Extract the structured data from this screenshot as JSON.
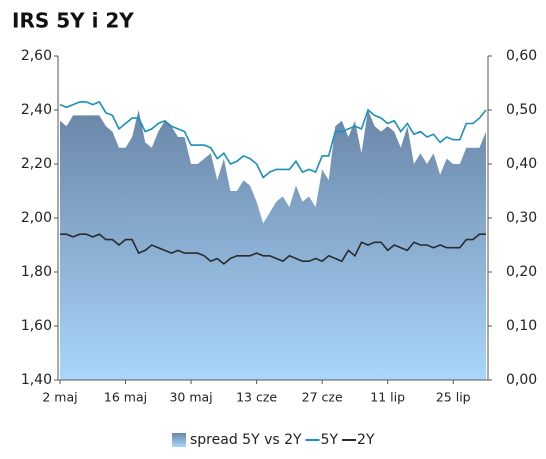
{
  "chart_data": {
    "type": "line",
    "title": "IRS 5Y i 2Y",
    "categories": [
      "2 maj",
      null,
      null,
      null,
      null,
      null,
      null,
      null,
      null,
      null,
      "16 maj",
      null,
      null,
      null,
      null,
      null,
      null,
      null,
      null,
      null,
      "30 maj",
      null,
      null,
      null,
      null,
      null,
      null,
      null,
      null,
      null,
      "13 cze",
      null,
      null,
      null,
      null,
      null,
      null,
      null,
      null,
      null,
      "27 cze",
      null,
      null,
      null,
      null,
      null,
      null,
      null,
      null,
      null,
      "11 lip",
      null,
      null,
      null,
      null,
      null,
      null,
      null,
      null,
      null,
      "25 lip",
      null,
      null,
      null,
      null,
      null
    ],
    "series": [
      {
        "name": "spread 5Y vs 2Y",
        "color": "#7c9cc0",
        "axis": "y2",
        "kind": "area",
        "values": [
          0.48,
          0.47,
          0.49,
          0.49,
          0.49,
          0.49,
          0.49,
          0.47,
          0.46,
          0.43,
          0.43,
          0.45,
          0.5,
          0.44,
          0.43,
          0.46,
          0.48,
          0.47,
          0.45,
          0.45,
          0.4,
          0.4,
          0.41,
          0.42,
          0.37,
          0.41,
          0.35,
          0.35,
          0.37,
          0.36,
          0.33,
          0.29,
          0.31,
          0.33,
          0.34,
          0.32,
          0.36,
          0.33,
          0.34,
          0.32,
          0.39,
          0.37,
          0.47,
          0.48,
          0.45,
          0.48,
          0.42,
          0.5,
          0.47,
          0.46,
          0.47,
          0.46,
          0.43,
          0.47,
          0.4,
          0.42,
          0.4,
          0.42,
          0.38,
          0.41,
          0.4,
          0.4,
          0.43,
          0.43,
          0.43,
          0.46
        ]
      },
      {
        "name": "5Y",
        "color": "#1a8fc0",
        "kind": "line",
        "values": [
          2.42,
          2.41,
          2.42,
          2.43,
          2.43,
          2.42,
          2.43,
          2.39,
          2.38,
          2.33,
          2.35,
          2.37,
          2.37,
          2.32,
          2.33,
          2.35,
          2.36,
          2.34,
          2.33,
          2.32,
          2.27,
          2.27,
          2.27,
          2.26,
          2.22,
          2.24,
          2.2,
          2.21,
          2.23,
          2.22,
          2.2,
          2.15,
          2.17,
          2.18,
          2.18,
          2.18,
          2.21,
          2.17,
          2.18,
          2.17,
          2.23,
          2.23,
          2.32,
          2.32,
          2.33,
          2.34,
          2.33,
          2.4,
          2.38,
          2.37,
          2.35,
          2.36,
          2.32,
          2.35,
          2.31,
          2.32,
          2.3,
          2.31,
          2.28,
          2.3,
          2.29,
          2.29,
          2.35,
          2.35,
          2.37,
          2.4
        ]
      },
      {
        "name": "2Y",
        "color": "#2b2b2b",
        "kind": "line",
        "values": [
          1.94,
          1.94,
          1.93,
          1.94,
          1.94,
          1.93,
          1.94,
          1.92,
          1.92,
          1.9,
          1.92,
          1.92,
          1.87,
          1.88,
          1.9,
          1.89,
          1.88,
          1.87,
          1.88,
          1.87,
          1.87,
          1.87,
          1.86,
          1.84,
          1.85,
          1.83,
          1.85,
          1.86,
          1.86,
          1.86,
          1.87,
          1.86,
          1.86,
          1.85,
          1.84,
          1.86,
          1.85,
          1.84,
          1.84,
          1.85,
          1.84,
          1.86,
          1.85,
          1.84,
          1.88,
          1.86,
          1.91,
          1.9,
          1.91,
          1.91,
          1.88,
          1.9,
          1.89,
          1.88,
          1.91,
          1.9,
          1.9,
          1.89,
          1.9,
          1.89,
          1.89,
          1.89,
          1.92,
          1.92,
          1.94,
          1.94
        ]
      }
    ],
    "ylim": [
      1.4,
      2.6
    ],
    "yticks": [
      {
        "value": 1.4,
        "label": "1,40"
      },
      {
        "value": 1.6,
        "label": "1,60"
      },
      {
        "value": 1.8,
        "label": "1,80"
      },
      {
        "value": 2.0,
        "label": "2,00"
      },
      {
        "value": 2.2,
        "label": "2,20"
      },
      {
        "value": 2.4,
        "label": "2,40"
      },
      {
        "value": 2.6,
        "label": "2,60"
      }
    ],
    "y2lim": [
      0,
      0.6
    ],
    "y2ticks": [
      {
        "value": 0,
        "label": "0,00"
      },
      {
        "value": 0.1,
        "label": "0,10"
      },
      {
        "value": 0.2,
        "label": "0,20"
      },
      {
        "value": 0.3,
        "label": "0,30"
      },
      {
        "value": 0.4,
        "label": "0,40"
      },
      {
        "value": 0.5,
        "label": "0,50"
      },
      {
        "value": 0.6,
        "label": "0,60"
      }
    ],
    "grid": false,
    "legend": "bottom"
  }
}
